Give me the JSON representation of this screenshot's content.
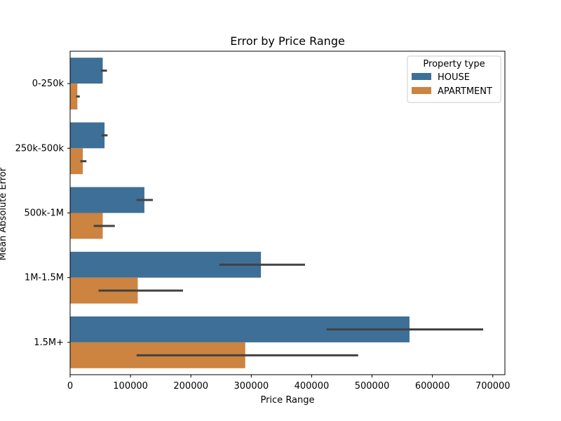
{
  "chart_data": {
    "type": "bar",
    "orientation": "horizontal",
    "title": "Error by Price Range",
    "xlabel": "Price Range",
    "ylabel": "Mean Absolute Error",
    "categories": [
      "0-250k",
      "250k-500k",
      "500k-1M",
      "1M-1.5M",
      "1.5M+"
    ],
    "series": [
      {
        "name": "HOUSE",
        "color": "#3e6f96",
        "values": [
          54000,
          57000,
          123000,
          316000,
          562000
        ],
        "error_low": [
          51000,
          52000,
          110000,
          247000,
          425000
        ],
        "error_high": [
          61000,
          62000,
          137000,
          389000,
          684000
        ]
      },
      {
        "name": "APARTMENT",
        "color": "#cc8440",
        "values": [
          12000,
          21000,
          54000,
          112000,
          290000
        ],
        "error_low": [
          10000,
          17000,
          39000,
          47000,
          110000
        ],
        "error_high": [
          16000,
          27000,
          74000,
          187000,
          477000
        ]
      }
    ],
    "xlim": [
      0,
      720000
    ],
    "xticks": [
      0,
      100000,
      200000,
      300000,
      400000,
      500000,
      600000,
      700000
    ],
    "xtick_labels": [
      "0",
      "100000",
      "200000",
      "300000",
      "400000",
      "500000",
      "600000",
      "700000"
    ],
    "legend": {
      "title": "Property type",
      "position": "top-right"
    },
    "grid": false
  }
}
